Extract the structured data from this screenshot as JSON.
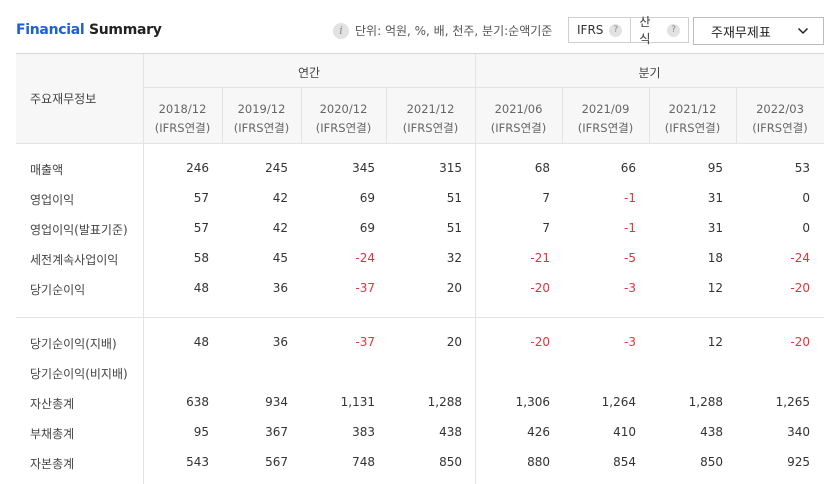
{
  "header": {
    "title_part1": "Financial",
    "title_part2": "Summary",
    "unit_text": "단위: 억원, %, 배, 천주, 분기:순액기준",
    "ifrs_label": "IFRS",
    "calc_label": "산식",
    "select_value": "주재무제표"
  },
  "table": {
    "row_header": "주요재무정보",
    "group_annual": "연간",
    "group_quarter": "분기",
    "columns": [
      {
        "period": "2018/12",
        "basis": "(IFRS연결)"
      },
      {
        "period": "2019/12",
        "basis": "(IFRS연결)"
      },
      {
        "period": "2020/12",
        "basis": "(IFRS연결)"
      },
      {
        "period": "2021/12",
        "basis": "(IFRS연결)"
      },
      {
        "period": "2021/06",
        "basis": "(IFRS연결)"
      },
      {
        "period": "2021/09",
        "basis": "(IFRS연결)"
      },
      {
        "period": "2021/12",
        "basis": "(IFRS연결)"
      },
      {
        "period": "2022/03",
        "basis": "(IFRS연결)"
      }
    ],
    "rows": [
      {
        "label": "매출액",
        "values": [
          "246",
          "245",
          "345",
          "315",
          "68",
          "66",
          "95",
          "53"
        ]
      },
      {
        "label": "영업이익",
        "values": [
          "57",
          "42",
          "69",
          "51",
          "7",
          "-1",
          "31",
          "0"
        ]
      },
      {
        "label": "영업이익(발표기준)",
        "values": [
          "57",
          "42",
          "69",
          "51",
          "7",
          "-1",
          "31",
          "0"
        ]
      },
      {
        "label": "세전계속사업이익",
        "values": [
          "58",
          "45",
          "-24",
          "32",
          "-21",
          "-5",
          "18",
          "-24"
        ]
      },
      {
        "label": "당기순이익",
        "values": [
          "48",
          "36",
          "-37",
          "20",
          "-20",
          "-3",
          "12",
          "-20"
        ]
      },
      {
        "label": "당기순이익(지배)",
        "values": [
          "48",
          "36",
          "-37",
          "20",
          "-20",
          "-3",
          "12",
          "-20"
        ]
      },
      {
        "label": "당기순이익(비지배)",
        "values": [
          "",
          "",
          "",
          "",
          "",
          "",
          "",
          ""
        ]
      },
      {
        "label": "자산총계",
        "values": [
          "638",
          "934",
          "1,131",
          "1,288",
          "1,306",
          "1,264",
          "1,288",
          "1,265"
        ]
      },
      {
        "label": "부채총계",
        "values": [
          "95",
          "367",
          "383",
          "438",
          "426",
          "410",
          "438",
          "340"
        ]
      },
      {
        "label": "자본총계",
        "values": [
          "543",
          "567",
          "748",
          "850",
          "880",
          "854",
          "850",
          "925"
        ]
      }
    ]
  }
}
